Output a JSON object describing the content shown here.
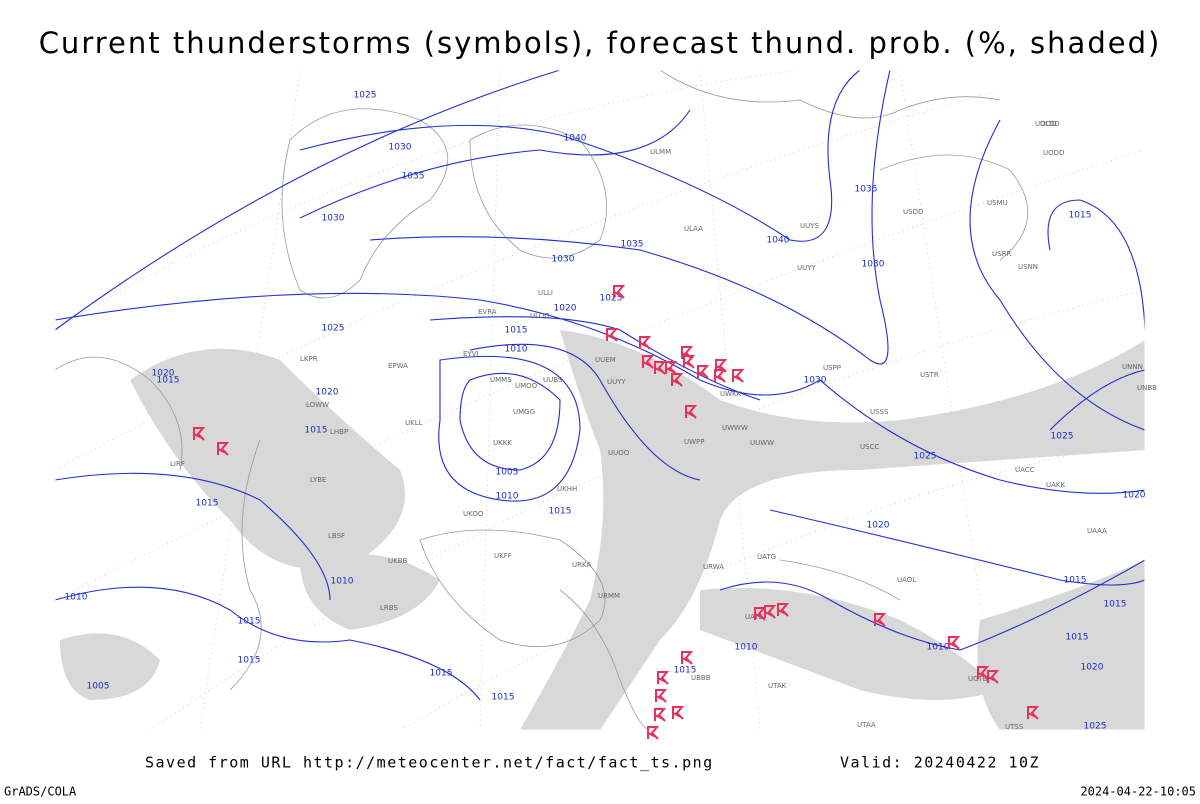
{
  "header": {
    "title": "Current thunderstorms (symbols), forecast thund. prob. (%, shaded)"
  },
  "footer": {
    "source": "Saved from URL http://meteocenter.net/fact/fact_ts.png",
    "valid": "Valid: 20240422 10Z",
    "credit": "GrADS/COLA",
    "timestamp": "2024-04-22-10:05"
  },
  "isobar_labels": [
    1025,
    1030,
    1035,
    1030,
    1040,
    1035,
    1030,
    1025,
    1020,
    1015,
    1010,
    1025,
    1020,
    1015,
    1020,
    1015,
    1005,
    1010,
    1015,
    1015,
    1010,
    1010,
    1015,
    1015,
    1015,
    1015,
    1015,
    1005,
    1040,
    1035,
    1030,
    1030,
    1025,
    1020,
    1015,
    1010,
    1010,
    1015,
    1020,
    1025,
    1015,
    1015,
    1020,
    1025
  ],
  "stations": [
    "ULOO",
    "UMMS",
    "UMGG",
    "UMOO",
    "UUBS",
    "UUEM",
    "UUYY",
    "UUWW",
    "UWPP",
    "UWKK",
    "UWWW",
    "URWA",
    "URMM",
    "UUOO",
    "UKKK",
    "UKHH",
    "UKLL",
    "UKFF",
    "UKBB",
    "URKA",
    "UKOO",
    "ULLI",
    "EVRA",
    "EYVI",
    "EPWA",
    "LKPR",
    "LOWW",
    "LHBP",
    "LYBE",
    "LBSF",
    "LRBS",
    "LIRF",
    "UATE",
    "UATG",
    "UAOL",
    "UACC",
    "UAKK",
    "UAAA",
    "USSS",
    "USTR",
    "USPP",
    "USCC",
    "UNNN",
    "UNBB",
    "UUYS",
    "UUYY",
    "ULAA",
    "ULMM",
    "ULDD",
    "USRR",
    "USNN",
    "UOOO",
    "UODD",
    "USDD",
    "USMU",
    "UGTB",
    "UBBB",
    "UTAK",
    "UTAA",
    "UTSS"
  ]
}
